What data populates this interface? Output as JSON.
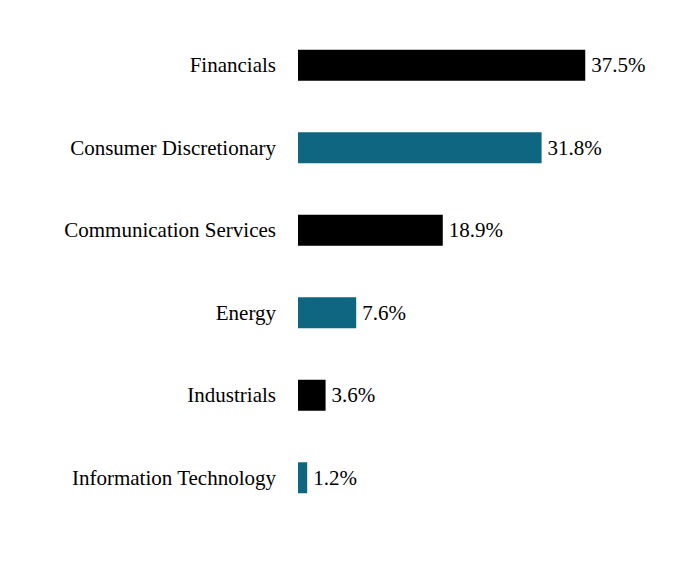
{
  "chart_data": {
    "type": "bar",
    "orientation": "horizontal",
    "categories": [
      "Financials",
      "Consumer Discretionary",
      "Communication Services",
      "Energy",
      "Industrials",
      "Information Technology"
    ],
    "values": [
      37.5,
      31.8,
      18.9,
      7.6,
      3.6,
      1.2
    ],
    "value_labels": [
      "37.5%",
      "31.8%",
      "18.9%",
      "7.6%",
      "3.6%",
      "1.2%"
    ],
    "colors": [
      "#000000",
      "#0e6680",
      "#000000",
      "#0e6680",
      "#000000",
      "#0e6680"
    ],
    "xlim": [
      0,
      50
    ],
    "data_labels": true,
    "grid": false
  }
}
